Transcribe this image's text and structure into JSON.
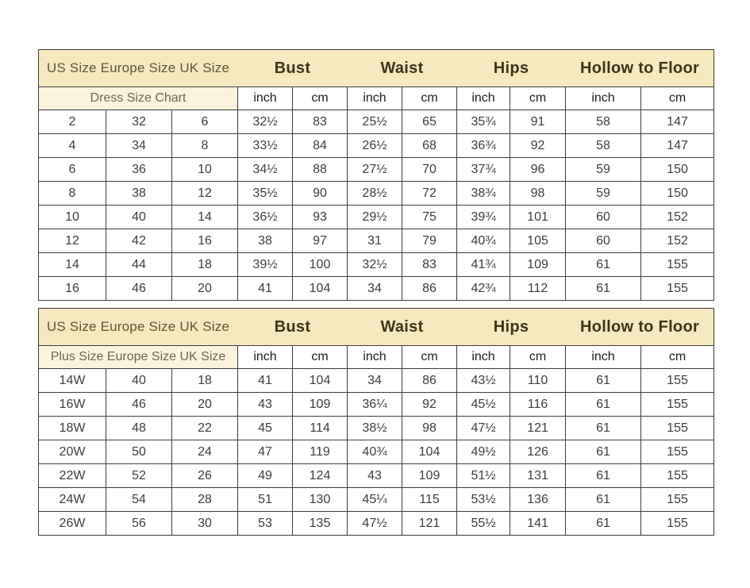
{
  "colors": {
    "band_bg": "#f6e8bf",
    "subheader_bg": "#fbf3dc",
    "band_text": "#5d5632",
    "measure_text": "#3b3517",
    "subheader_text": "#6e6747",
    "cell_text": "#3d3d3d",
    "border": "#3c3c3c"
  },
  "chart_data": [
    {
      "type": "table",
      "size_group_header": "US Size Europe Size UK Size",
      "measure_headers": [
        "Bust",
        "Waist",
        "Hips",
        "Hollow to Floor"
      ],
      "subheader_label": "Dress Size Chart",
      "unit_headers": [
        "inch",
        "cm",
        "inch",
        "cm",
        "inch",
        "cm",
        "inch",
        "cm"
      ],
      "rows": [
        [
          "2",
          "32",
          "6",
          "32½",
          "83",
          "25½",
          "65",
          "35¾",
          "91",
          "58",
          "147"
        ],
        [
          "4",
          "34",
          "8",
          "33½",
          "84",
          "26½",
          "68",
          "36¾",
          "92",
          "58",
          "147"
        ],
        [
          "6",
          "36",
          "10",
          "34½",
          "88",
          "27½",
          "70",
          "37¾",
          "96",
          "59",
          "150"
        ],
        [
          "8",
          "38",
          "12",
          "35½",
          "90",
          "28½",
          "72",
          "38¾",
          "98",
          "59",
          "150"
        ],
        [
          "10",
          "40",
          "14",
          "36½",
          "93",
          "29½",
          "75",
          "39¾",
          "101",
          "60",
          "152"
        ],
        [
          "12",
          "42",
          "16",
          "38",
          "97",
          "31",
          "79",
          "40¾",
          "105",
          "60",
          "152"
        ],
        [
          "14",
          "44",
          "18",
          "39½",
          "100",
          "32½",
          "83",
          "41¾",
          "109",
          "61",
          "155"
        ],
        [
          "16",
          "46",
          "20",
          "41",
          "104",
          "34",
          "86",
          "42¾",
          "112",
          "61",
          "155"
        ]
      ]
    },
    {
      "type": "table",
      "size_group_header": "US Size Europe Size UK Size",
      "measure_headers": [
        "Bust",
        "Waist",
        "Hips",
        "Hollow to Floor"
      ],
      "subheader_label": "Plus Size Europe Size UK Size",
      "unit_headers": [
        "inch",
        "cm",
        "inch",
        "cm",
        "inch",
        "cm",
        "inch",
        "cm"
      ],
      "rows": [
        [
          "14W",
          "40",
          "18",
          "41",
          "104",
          "34",
          "86",
          "43½",
          "110",
          "61",
          "155"
        ],
        [
          "16W",
          "46",
          "20",
          "43",
          "109",
          "36¼",
          "92",
          "45½",
          "116",
          "61",
          "155"
        ],
        [
          "18W",
          "48",
          "22",
          "45",
          "114",
          "38½",
          "98",
          "47½",
          "121",
          "61",
          "155"
        ],
        [
          "20W",
          "50",
          "24",
          "47",
          "119",
          "40¾",
          "104",
          "49½",
          "126",
          "61",
          "155"
        ],
        [
          "22W",
          "52",
          "26",
          "49",
          "124",
          "43",
          "109",
          "51½",
          "131",
          "61",
          "155"
        ],
        [
          "24W",
          "54",
          "28",
          "51",
          "130",
          "45¼",
          "115",
          "53½",
          "136",
          "61",
          "155"
        ],
        [
          "26W",
          "56",
          "30",
          "53",
          "135",
          "47½",
          "121",
          "55½",
          "141",
          "61",
          "155"
        ]
      ]
    }
  ]
}
